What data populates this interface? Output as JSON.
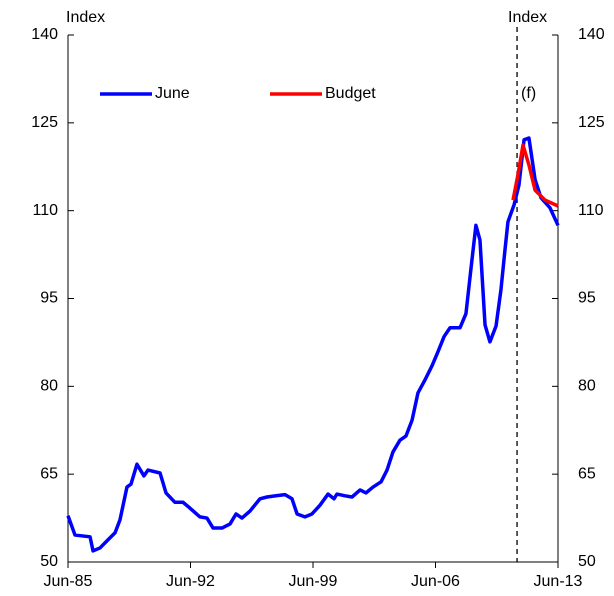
{
  "chart_data": {
    "type": "line",
    "y_label": "Index",
    "y2_label": "Index",
    "annotation": "(f)",
    "forecast_start": 2011.16,
    "xlim": [
      1985.5,
      2013.5
    ],
    "xticks": [
      {
        "value": 1985.5,
        "label": "Jun-85"
      },
      {
        "value": 1992.5,
        "label": "Jun-92"
      },
      {
        "value": 1999.5,
        "label": "Jun-99"
      },
      {
        "value": 2006.5,
        "label": "Jun-06"
      },
      {
        "value": 2013.5,
        "label": "Jun-13"
      }
    ],
    "ylim": [
      50,
      140
    ],
    "yticks": [
      50,
      65,
      80,
      95,
      110,
      125,
      140
    ],
    "y2lim": [
      50,
      140
    ],
    "y2ticks": [
      50,
      65,
      80,
      95,
      110,
      125,
      140
    ],
    "legend": "top-left",
    "series": [
      {
        "name": "June",
        "color": "#0000ff",
        "x": [
          1985.5,
          1985.9,
          1986.76,
          1986.93,
          1987.33,
          1987.79,
          1988.19,
          1988.47,
          1988.87,
          1989.1,
          1989.44,
          1989.84,
          1990.07,
          1990.76,
          1991.1,
          1991.61,
          1992.07,
          1992.47,
          1993.04,
          1993.44,
          1993.79,
          1994.3,
          1994.76,
          1995.1,
          1995.44,
          1995.9,
          1996.47,
          1996.87,
          1997.33,
          1997.9,
          1998.3,
          1998.59,
          1999.04,
          1999.44,
          1999.9,
          2000.36,
          2000.7,
          2000.87,
          2001.33,
          2001.73,
          2002.19,
          2002.53,
          2002.93,
          2003.39,
          2003.73,
          2004.07,
          2004.47,
          2004.81,
          2005.16,
          2005.5,
          2005.9,
          2006.3,
          2006.64,
          2006.99,
          2007.33,
          2007.9,
          2008.24,
          2008.53,
          2008.81,
          2009.04,
          2009.33,
          2009.61,
          2009.96,
          2010.24,
          2010.47,
          2010.64,
          2010.99,
          2011.27,
          2011.56,
          2011.84,
          2012.19,
          2012.53,
          2013.04,
          2013.5
        ],
        "values": [
          57.9,
          54.6,
          54.3,
          51.9,
          52.4,
          53.8,
          55,
          57.2,
          62.8,
          63.3,
          66.7,
          64.7,
          65.7,
          65.2,
          61.8,
          60.2,
          60.2,
          59.2,
          57.7,
          57.5,
          55.8,
          55.8,
          56.5,
          58.2,
          57.5,
          58.7,
          60.8,
          61.1,
          61.3,
          61.5,
          60.8,
          58.2,
          57.7,
          58.2,
          59.7,
          61.6,
          60.8,
          61.6,
          61.3,
          61.1,
          62.3,
          61.8,
          62.8,
          63.7,
          65.7,
          68.8,
          70.8,
          71.5,
          74.2,
          78.9,
          81.1,
          83.5,
          85.9,
          88.5,
          90,
          90,
          92.4,
          100.2,
          107.5,
          105,
          90.5,
          87.6,
          90.3,
          96.5,
          103.3,
          108.1,
          111,
          114.4,
          122.1,
          122.4,
          115.3,
          112.2,
          110.5,
          107.5
        ]
      },
      {
        "name": "Budget",
        "color": "#ff0000",
        "x": [
          2010.93,
          2011.21,
          2011.5,
          2011.84,
          2012.19,
          2012.76,
          2013.5
        ],
        "values": [
          111.8,
          116.1,
          121.2,
          117.8,
          113.5,
          111.8,
          110.8
        ]
      }
    ]
  }
}
